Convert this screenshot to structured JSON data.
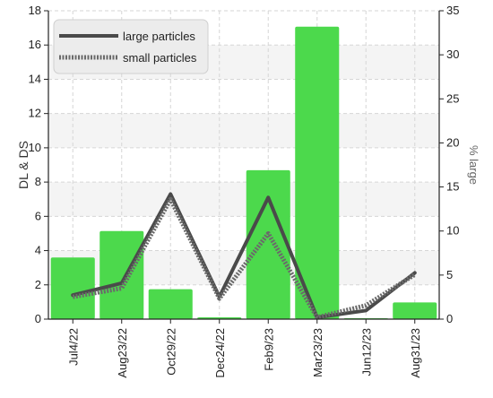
{
  "chart_data": {
    "type": "bar+line",
    "categories": [
      "Jul4/22",
      "Aug23/22",
      "Oct29/22",
      "Dec24/22",
      "Feb9/23",
      "Mar23/23",
      "Jun12/23",
      "Aug31/23"
    ],
    "bar_series": {
      "name": "% large",
      "axis": "right",
      "color": "#4cd94c",
      "values": [
        7.0,
        10.0,
        3.4,
        0.2,
        16.9,
        33.2,
        0.1,
        1.9
      ]
    },
    "line_series": [
      {
        "name": "large particles",
        "axis": "left",
        "style": "solid",
        "color": "#4a4a4a",
        "values": [
          1.4,
          2.1,
          7.3,
          1.3,
          7.1,
          0.1,
          0.5,
          2.7
        ]
      },
      {
        "name": "small particles",
        "axis": "left",
        "style": "dotted",
        "color": "#6a6a6a",
        "values": [
          1.3,
          1.8,
          7.0,
          1.2,
          5.0,
          0.1,
          0.8,
          2.6
        ]
      }
    ],
    "ylabel": "DL & DS",
    "y2label": "% large",
    "ylim": [
      0,
      18
    ],
    "y2lim": [
      0,
      35
    ],
    "yticks": [
      0,
      2,
      4,
      6,
      8,
      10,
      12,
      14,
      16,
      18
    ],
    "y2ticks": [
      0,
      5,
      10,
      15,
      20,
      25,
      30,
      35
    ],
    "grid": true,
    "legend_position": "top-left"
  }
}
